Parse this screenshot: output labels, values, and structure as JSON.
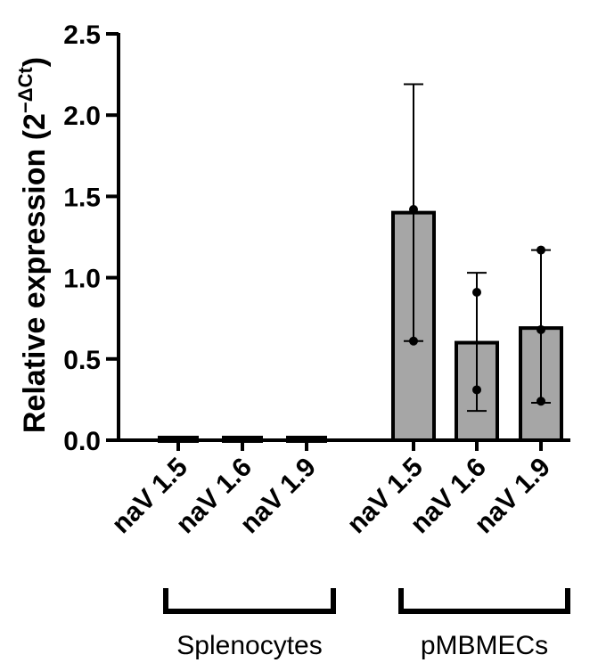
{
  "chart_data": {
    "type": "bar",
    "ylabel_main": "Relative expression (2",
    "ylabel_exp": "−ΔCt",
    "ylabel_close": ")",
    "ylim": [
      0,
      2.5
    ],
    "yticks": [
      "0.0",
      "0.5",
      "1.0",
      "1.5",
      "2.0",
      "2.5"
    ],
    "categories": [
      "naV 1.5",
      "naV 1.6",
      "naV 1.9",
      "naV 1.5",
      "naV 1.6",
      "naV 1.9"
    ],
    "values": [
      0.0,
      0.0,
      0.0,
      1.4,
      0.6,
      0.69
    ],
    "error_low": [
      0.0,
      0.0,
      0.0,
      0.61,
      0.18,
      0.23
    ],
    "error_high": [
      0.0,
      0.0,
      0.0,
      2.19,
      1.03,
      1.17
    ],
    "points": [
      [],
      [],
      [],
      [
        1.42,
        0.61
      ],
      [
        0.91,
        0.31
      ],
      [
        1.17,
        0.68,
        0.24
      ]
    ],
    "groups": [
      {
        "label": "Splenocytes",
        "categories": [
          0,
          1,
          2
        ]
      },
      {
        "label": "pMBMECs",
        "categories": [
          3,
          4,
          5
        ]
      }
    ],
    "bar_color": "#a6a6a6",
    "grid": false
  }
}
